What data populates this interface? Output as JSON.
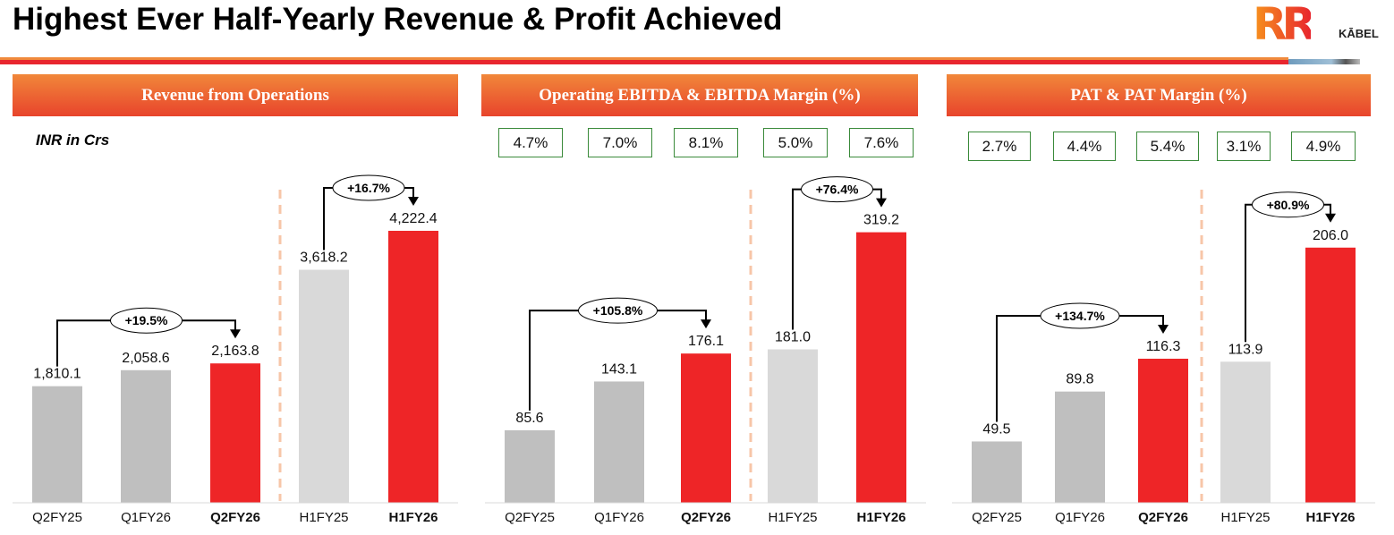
{
  "title": "Highest Ever Half-Yearly Revenue & Profit Achieved",
  "logo": {
    "mark": "RR",
    "text": "KĀBEL"
  },
  "colors": {
    "gray": "#bfbfbf",
    "light_gray": "#d9d9d9",
    "red": "#ee2527",
    "divider": "#f7c6a8",
    "margin_border": "#3a8a3a"
  },
  "chart_data": [
    {
      "type": "bar",
      "title": "Revenue from Operations",
      "unit_label": "INR in Crs",
      "categories": [
        "Q2FY25",
        "Q1FY26",
        "Q2FY26",
        "H1FY25",
        "H1FY26"
      ],
      "values": [
        1810.1,
        2058.6,
        2163.8,
        3618.2,
        4222.4
      ],
      "value_labels": [
        "1,810.1",
        "2,058.6",
        "2,163.8",
        "3,618.2",
        "4,222.4"
      ],
      "bold_categories": [
        false,
        false,
        true,
        false,
        true
      ],
      "bar_colors": [
        "gray",
        "gray",
        "red",
        "light_gray",
        "red"
      ],
      "ylim": [
        0,
        5000
      ],
      "growth": [
        {
          "from": 0,
          "to": 2,
          "label": "+19.5%"
        },
        {
          "from": 3,
          "to": 4,
          "label": "+16.7%"
        }
      ]
    },
    {
      "type": "bar",
      "title": "Operating EBITDA & EBITDA Margin (%)",
      "margins": [
        "4.7%",
        "7.0%",
        "8.1%",
        "5.0%",
        "7.6%"
      ],
      "categories": [
        "Q2FY25",
        "Q1FY26",
        "Q2FY26",
        "H1FY25",
        "H1FY26"
      ],
      "values": [
        85.6,
        143.1,
        176.1,
        181.0,
        319.2
      ],
      "value_labels": [
        "85.6",
        "143.1",
        "176.1",
        "181.0",
        "319.2"
      ],
      "bold_categories": [
        false,
        false,
        true,
        false,
        true
      ],
      "bar_colors": [
        "gray",
        "gray",
        "red",
        "light_gray",
        "red"
      ],
      "ylim": [
        0,
        380
      ],
      "growth": [
        {
          "from": 0,
          "to": 2,
          "label": "+105.8%"
        },
        {
          "from": 3,
          "to": 4,
          "label": "+76.4%"
        }
      ]
    },
    {
      "type": "bar",
      "title": "PAT & PAT Margin (%)",
      "margins": [
        "2.7%",
        "4.4%",
        "5.4%",
        "3.1%",
        "4.9%"
      ],
      "categories": [
        "Q2FY25",
        "Q1FY26",
        "Q2FY26",
        "H1FY25",
        "H1FY26"
      ],
      "values": [
        49.5,
        89.8,
        116.3,
        113.9,
        206.0
      ],
      "value_labels": [
        "49.5",
        "89.8",
        "116.3",
        "113.9",
        "206.0"
      ],
      "bold_categories": [
        false,
        false,
        true,
        false,
        true
      ],
      "bar_colors": [
        "gray",
        "gray",
        "red",
        "light_gray",
        "red"
      ],
      "ylim": [
        0,
        260
      ],
      "growth": [
        {
          "from": 0,
          "to": 2,
          "label": "+134.7%"
        },
        {
          "from": 3,
          "to": 4,
          "label": "+80.9%"
        }
      ]
    }
  ]
}
